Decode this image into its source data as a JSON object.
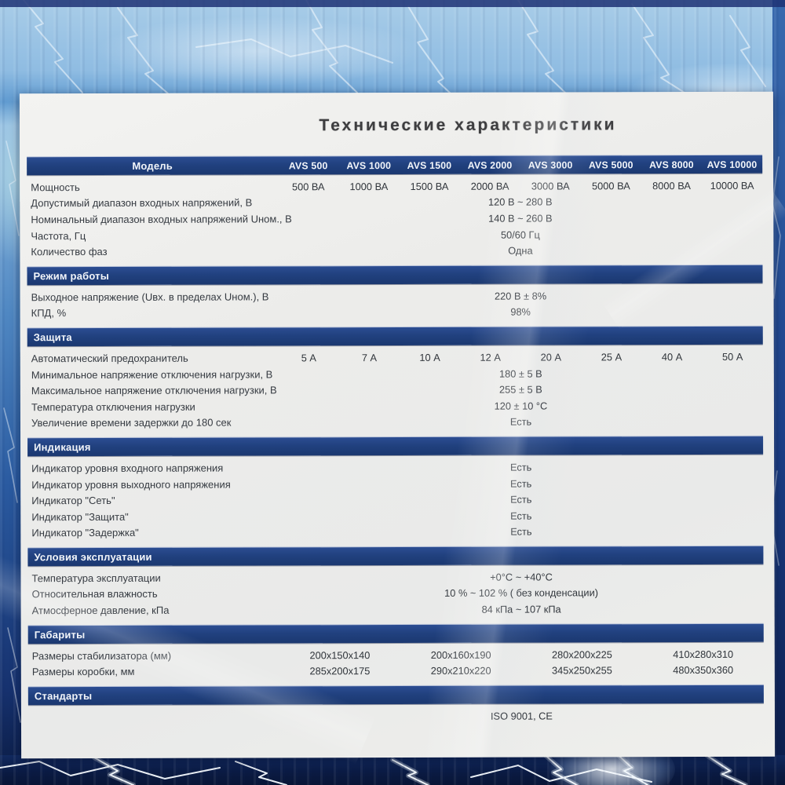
{
  "title": "Технические характеристики",
  "colors": {
    "bar_navy": "#21417f",
    "panel_bg": "#edeeec",
    "body_text": "#30353b",
    "bg_light_blue": "#8fbce2",
    "bg_dark_navy": "#0a1a42",
    "lightning_white": "#f6fbff"
  },
  "table": {
    "header": {
      "label": "Модель",
      "columns": [
        "AVS 500",
        "AVS 1000",
        "AVS 1500",
        "AVS 2000",
        "AVS 3000",
        "AVS 5000",
        "AVS 8000",
        "AVS 10000"
      ]
    },
    "sections": [
      {
        "title": null,
        "rows": [
          {
            "label": "Мощность",
            "type": "cols",
            "values": [
              "500 ВА",
              "1000 ВА",
              "1500 ВА",
              "2000 ВА",
              "3000 ВА",
              "5000 ВА",
              "8000 ВА",
              "10000 ВА"
            ]
          },
          {
            "label": "Допустимый диапазон входных напряжений, В",
            "type": "span",
            "value": "120 В ~ 280 В"
          },
          {
            "label": "Номинальный диапазон входных напряжений Uном., В",
            "type": "span",
            "value": "140 В  ~ 260 В"
          },
          {
            "label": "Частота, Гц",
            "type": "span",
            "value": "50/60 Гц"
          },
          {
            "label": "Количество фаз",
            "type": "span",
            "value": "Одна"
          }
        ]
      },
      {
        "title": "Режим работы",
        "rows": [
          {
            "label": "Выходное напряжение (Uвх. в пределах Uном.), В",
            "type": "span",
            "value": "220 В ± 8%"
          },
          {
            "label": "КПД, %",
            "type": "span",
            "value": "98%"
          }
        ]
      },
      {
        "title": "Защита",
        "rows": [
          {
            "label": "Автоматический предохранитель",
            "type": "cols",
            "values": [
              "5 А",
              "7 А",
              "10 А",
              "12 А",
              "20 А",
              "25 А",
              "40 А",
              "50 А"
            ]
          },
          {
            "label": "Минимальное напряжение отключения нагрузки, В",
            "type": "span",
            "value": "180 ± 5 В"
          },
          {
            "label": "Максимальное напряжение отключения нагрузки, В",
            "type": "span",
            "value": "255 ± 5 В"
          },
          {
            "label": "Температура отключения нагрузки",
            "type": "span",
            "value": "120  ± 10 °C"
          },
          {
            "label": "Увеличение времени задержки до 180 сек",
            "type": "span",
            "value": "Есть"
          }
        ]
      },
      {
        "title": "Индикация",
        "rows": [
          {
            "label": "Индикатор уровня входного напряжения",
            "type": "span",
            "value": "Есть"
          },
          {
            "label": "Индикатор уровня выходного напряжения",
            "type": "span",
            "value": "Есть"
          },
          {
            "label": "Индикатор \"Сеть\"",
            "type": "span",
            "value": "Есть"
          },
          {
            "label": "Индикатор \"Защита\"",
            "type": "span",
            "value": "Есть"
          },
          {
            "label": "Индикатор \"Задержка\"",
            "type": "span",
            "value": "Есть"
          }
        ]
      },
      {
        "title": "Условия эксплуатации",
        "rows": [
          {
            "label": "Температура эксплуатации",
            "type": "span",
            "value": "+0°C ~ +40°C"
          },
          {
            "label": "Относительная влажность",
            "type": "span",
            "value": "10 % ~ 102 %  ( без конденсации)"
          },
          {
            "label": "Атмосферное давление, кПа",
            "type": "span",
            "value": "84 кПа ~ 107 кПа"
          }
        ]
      },
      {
        "title": "Габариты",
        "rows": [
          {
            "label": "Размеры стабилизатора (мм)",
            "type": "pairs",
            "values": [
              "200x150x140",
              "200x160x190",
              "280x200x225",
              "410x280x310"
            ]
          },
          {
            "label": "Размеры коробки, мм",
            "type": "pairs",
            "values": [
              "285x200x175",
              "290x210x220",
              "345x250x255",
              "480x350x360"
            ]
          }
        ]
      },
      {
        "title": "Стандарты",
        "rows": [
          {
            "label": "",
            "type": "span",
            "value": "ISO 9001, CE"
          }
        ]
      }
    ]
  }
}
